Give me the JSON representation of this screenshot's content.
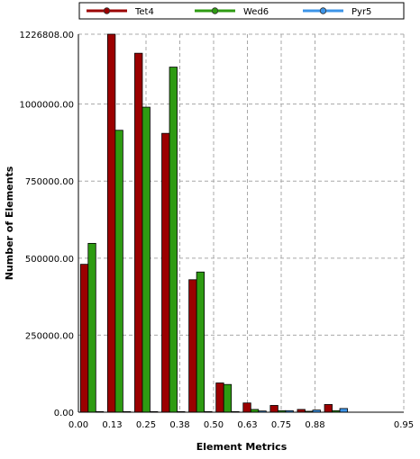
{
  "chart_data": {
    "type": "bar",
    "xlabel": "Element Metrics",
    "ylabel": "Number of Elements",
    "ylim": [
      0,
      1226808.0
    ],
    "y_ticks": [
      "0.00",
      "250000.00",
      "500000.00",
      "750000.00",
      "1000000.00",
      "1226808.00"
    ],
    "y_tick_values": [
      0,
      250000,
      500000,
      750000,
      1000000,
      1226808
    ],
    "x_ticks": [
      "0.00",
      "0.13",
      "0.25",
      "0.38",
      "0.50",
      "0.63",
      "0.75",
      "0.88",
      "0.95"
    ],
    "legend_position": "top",
    "grid": true,
    "bins": 12,
    "series": [
      {
        "name": "Tet4",
        "color": "#9b0000",
        "values": [
          480000,
          1226808,
          1165000,
          905000,
          430000,
          95000,
          30000,
          22000,
          9000,
          25000,
          0,
          0
        ]
      },
      {
        "name": "Wed6",
        "color": "#2e9b12",
        "values": [
          548000,
          915000,
          990000,
          1120000,
          455000,
          90000,
          9000,
          5000,
          3000,
          5000,
          0,
          0
        ]
      },
      {
        "name": "Pyr5",
        "color": "#3c94e8",
        "values": [
          2000,
          2000,
          2000,
          2000,
          2000,
          2000,
          4000,
          5000,
          7000,
          12000,
          0,
          0
        ]
      }
    ]
  }
}
